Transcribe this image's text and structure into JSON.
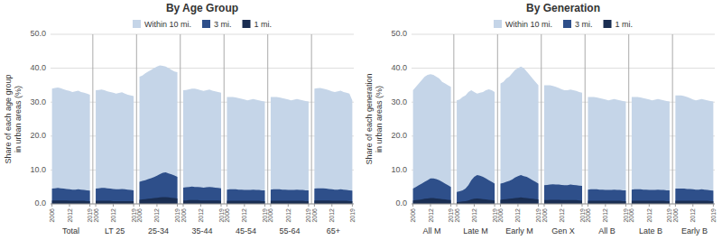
{
  "chart_data": [
    {
      "type": "area",
      "title": "By Age Group",
      "y_label": "Share of each age group\nin urban areas (%)",
      "stacked": false,
      "grid": true,
      "legend": "top",
      "groups": [
        "Total",
        "LT 25",
        "25-34",
        "35-44",
        "45-54",
        "55-64",
        "65+"
      ],
      "categories": [
        "2006",
        null,
        null,
        null,
        null,
        null,
        "2012",
        null,
        null,
        null,
        null,
        null,
        null,
        "2019",
        null,
        "2006",
        null,
        null,
        null,
        null,
        null,
        "2012",
        null,
        null,
        null,
        null,
        null,
        null,
        "2019",
        null,
        "2006",
        null,
        null,
        null,
        null,
        null,
        "2012",
        null,
        null,
        null,
        null,
        null,
        null,
        "2019",
        null,
        "2006",
        null,
        null,
        null,
        null,
        null,
        "2012",
        null,
        null,
        null,
        null,
        null,
        null,
        "2019",
        null,
        "2006",
        null,
        null,
        null,
        null,
        null,
        "2012",
        null,
        null,
        null,
        null,
        null,
        null,
        "2019",
        null,
        "2006",
        null,
        null,
        null,
        null,
        null,
        "2012",
        null,
        null,
        null,
        null,
        null,
        null,
        "2019",
        null,
        "2006",
        null,
        null,
        null,
        null,
        null,
        "2012",
        null,
        null,
        null,
        null,
        null,
        null,
        "2019"
      ],
      "ylim": [
        0,
        50
      ],
      "yticks": [
        {
          "value": 0,
          "label": "0.0"
        },
        {
          "value": 10,
          "label": "10.0"
        },
        {
          "value": 20,
          "label": "20.0"
        },
        {
          "value": 30,
          "label": "30.0"
        },
        {
          "value": 40,
          "label": "40.0"
        },
        {
          "value": 50,
          "label": "50.0"
        }
      ],
      "series": [
        {
          "name": "Within 10 mi.",
          "color": "#c5d5e8",
          "values": [
            34.0,
            34.2,
            34.3,
            34.1,
            33.8,
            33.5,
            33.3,
            33.0,
            33.2,
            33.4,
            33.0,
            32.8,
            32.5,
            32.2,
            null,
            33.5,
            33.6,
            33.7,
            33.5,
            33.2,
            33.0,
            32.8,
            32.5,
            32.7,
            32.9,
            32.5,
            32.2,
            32.0,
            31.8,
            null,
            37.5,
            37.8,
            38.5,
            39.0,
            39.5,
            40.0,
            40.5,
            40.8,
            40.7,
            40.5,
            40.0,
            39.5,
            39.0,
            38.8,
            null,
            33.5,
            33.6,
            33.8,
            34.0,
            34.0,
            33.8,
            33.5,
            33.3,
            33.5,
            33.7,
            33.4,
            33.2,
            33.0,
            32.8,
            null,
            31.5,
            31.5,
            31.5,
            31.4,
            31.2,
            31.0,
            30.8,
            30.5,
            30.7,
            30.9,
            30.7,
            30.5,
            30.3,
            30.2,
            null,
            31.5,
            31.5,
            31.5,
            31.4,
            31.2,
            31.0,
            30.8,
            30.5,
            30.7,
            30.9,
            30.7,
            30.5,
            30.3,
            30.2,
            null,
            34.0,
            34.1,
            34.2,
            34.0,
            33.8,
            33.5,
            33.2,
            33.0,
            33.2,
            33.4,
            33.0,
            32.8,
            32.5,
            30.5
          ]
        },
        {
          "name": "3 mi.",
          "color": "#2e4f8a",
          "values": [
            4.5,
            4.6,
            4.7,
            4.6,
            4.5,
            4.4,
            4.3,
            4.2,
            4.2,
            4.3,
            4.2,
            4.1,
            4.0,
            3.9,
            null,
            4.5,
            4.6,
            4.7,
            4.7,
            4.6,
            4.5,
            4.4,
            4.3,
            4.3,
            4.4,
            4.3,
            4.2,
            4.1,
            4.0,
            null,
            6.5,
            6.8,
            7.0,
            7.3,
            7.6,
            7.9,
            8.3,
            8.8,
            9.2,
            9.3,
            9.0,
            8.7,
            8.4,
            8.0,
            null,
            4.8,
            4.9,
            5.0,
            5.1,
            5.0,
            5.0,
            4.9,
            4.8,
            4.9,
            5.0,
            4.9,
            4.8,
            4.7,
            4.6,
            null,
            4.2,
            4.3,
            4.3,
            4.3,
            4.2,
            4.2,
            4.1,
            4.1,
            4.1,
            4.2,
            4.1,
            4.1,
            4.0,
            4.0,
            null,
            4.2,
            4.3,
            4.3,
            4.3,
            4.2,
            4.2,
            4.1,
            4.1,
            4.1,
            4.2,
            4.1,
            4.1,
            4.0,
            4.0,
            null,
            4.5,
            4.6,
            4.6,
            4.6,
            4.5,
            4.4,
            4.3,
            4.2,
            4.2,
            4.3,
            4.2,
            4.1,
            4.0,
            3.9
          ]
        },
        {
          "name": "1 mi.",
          "color": "#1a2e52",
          "values": [
            1.0,
            1.0,
            1.0,
            1.0,
            1.0,
            1.0,
            0.9,
            0.9,
            0.9,
            0.9,
            0.9,
            0.9,
            0.8,
            0.8,
            null,
            0.9,
            0.9,
            0.9,
            0.9,
            0.9,
            0.9,
            0.8,
            0.8,
            0.8,
            0.8,
            0.8,
            0.8,
            0.8,
            0.8,
            null,
            1.2,
            1.3,
            1.4,
            1.5,
            1.6,
            1.7,
            1.8,
            1.9,
            2.0,
            2.0,
            1.9,
            1.8,
            1.7,
            1.6,
            null,
            1.0,
            1.0,
            1.1,
            1.1,
            1.1,
            1.1,
            1.0,
            1.0,
            1.0,
            1.0,
            1.0,
            1.0,
            1.0,
            0.9,
            null,
            0.9,
            0.9,
            0.9,
            0.9,
            0.9,
            0.9,
            0.9,
            0.9,
            0.9,
            0.9,
            0.9,
            0.9,
            0.8,
            0.8,
            null,
            0.9,
            0.9,
            0.9,
            0.9,
            0.9,
            0.9,
            0.9,
            0.9,
            0.9,
            0.9,
            0.9,
            0.9,
            0.8,
            0.8,
            null,
            1.0,
            1.0,
            1.0,
            1.0,
            1.0,
            1.0,
            0.9,
            0.9,
            0.9,
            0.9,
            0.9,
            0.9,
            0.8,
            0.8
          ]
        }
      ]
    },
    {
      "type": "area",
      "title": "By Generation",
      "y_label": "Share of each generation\nin urban areas (%)",
      "stacked": false,
      "grid": true,
      "legend": "top",
      "groups": [
        "All M",
        "Late M",
        "Early M",
        "Gen X",
        "All B",
        "Late B",
        "Early B"
      ],
      "categories": [
        "2006",
        null,
        null,
        null,
        null,
        null,
        "2012",
        null,
        null,
        null,
        null,
        null,
        null,
        "2019",
        null,
        "2006",
        null,
        null,
        null,
        null,
        null,
        "2012",
        null,
        null,
        null,
        null,
        null,
        null,
        "2019",
        null,
        "2006",
        null,
        null,
        null,
        null,
        null,
        "2012",
        null,
        null,
        null,
        null,
        null,
        null,
        "2019",
        null,
        "2006",
        null,
        null,
        null,
        null,
        null,
        "2012",
        null,
        null,
        null,
        null,
        null,
        null,
        "2019",
        null,
        "2006",
        null,
        null,
        null,
        null,
        null,
        "2012",
        null,
        null,
        null,
        null,
        null,
        null,
        "2019",
        null,
        "2006",
        null,
        null,
        null,
        null,
        null,
        "2012",
        null,
        null,
        null,
        null,
        null,
        null,
        "2019",
        null,
        "2006",
        null,
        null,
        null,
        null,
        null,
        "2012",
        null,
        null,
        null,
        null,
        null,
        null,
        "2019"
      ],
      "ylim": [
        0,
        50
      ],
      "yticks": [
        {
          "value": 0,
          "label": "0.0"
        },
        {
          "value": 10,
          "label": "10.0"
        },
        {
          "value": 20,
          "label": "20.0"
        },
        {
          "value": 30,
          "label": "30.0"
        },
        {
          "value": 40,
          "label": "40.0"
        },
        {
          "value": 50,
          "label": "50.0"
        }
      ],
      "series": [
        {
          "name": "Within 10 mi.",
          "color": "#c5d5e8",
          "values": [
            33.5,
            34.5,
            35.5,
            36.5,
            37.5,
            38.0,
            38.2,
            38.0,
            37.5,
            37.0,
            36.0,
            35.5,
            35.0,
            34.5,
            null,
            30.5,
            30.8,
            31.5,
            32.0,
            33.0,
            33.5,
            33.0,
            32.5,
            32.8,
            33.0,
            33.5,
            33.8,
            33.5,
            33.0,
            null,
            35.5,
            36.0,
            37.0,
            37.5,
            38.5,
            39.5,
            40.0,
            40.5,
            40.0,
            39.0,
            38.0,
            37.0,
            36.0,
            35.0,
            null,
            35.0,
            35.0,
            35.0,
            34.8,
            34.5,
            34.2,
            33.8,
            33.5,
            33.5,
            33.7,
            33.5,
            33.3,
            33.0,
            32.8,
            null,
            31.5,
            31.5,
            31.5,
            31.4,
            31.2,
            31.0,
            30.8,
            30.5,
            30.7,
            30.9,
            30.7,
            30.5,
            30.3,
            30.2,
            null,
            31.5,
            31.5,
            31.5,
            31.4,
            31.2,
            31.0,
            30.8,
            30.5,
            30.7,
            30.9,
            30.7,
            30.5,
            30.3,
            30.2,
            null,
            32.0,
            32.0,
            32.0,
            31.8,
            31.5,
            31.2,
            30.8,
            30.5,
            30.7,
            30.9,
            30.7,
            30.5,
            30.3,
            30.2
          ]
        },
        {
          "name": "3 mi.",
          "color": "#2e4f8a",
          "values": [
            4.5,
            5.0,
            5.5,
            6.0,
            6.5,
            7.0,
            7.5,
            7.5,
            7.3,
            7.0,
            6.5,
            6.0,
            5.5,
            5.0,
            null,
            3.5,
            3.7,
            4.0,
            4.5,
            5.5,
            7.0,
            8.0,
            8.5,
            8.3,
            8.0,
            7.5,
            7.0,
            6.5,
            6.0,
            null,
            6.0,
            6.2,
            6.5,
            6.8,
            7.2,
            7.8,
            8.2,
            8.5,
            8.2,
            8.0,
            7.5,
            7.0,
            6.5,
            6.0,
            null,
            5.5,
            5.6,
            5.7,
            5.8,
            5.7,
            5.7,
            5.6,
            5.5,
            5.5,
            5.7,
            5.6,
            5.5,
            5.4,
            5.3,
            null,
            4.2,
            4.3,
            4.3,
            4.3,
            4.2,
            4.2,
            4.1,
            4.1,
            4.1,
            4.2,
            4.1,
            4.1,
            4.0,
            4.0,
            null,
            4.2,
            4.3,
            4.3,
            4.3,
            4.2,
            4.2,
            4.1,
            4.1,
            4.1,
            4.2,
            4.1,
            4.1,
            4.0,
            4.0,
            null,
            4.5,
            4.5,
            4.5,
            4.5,
            4.4,
            4.4,
            4.3,
            4.2,
            4.2,
            4.3,
            4.2,
            4.1,
            4.0,
            3.9
          ]
        },
        {
          "name": "1 mi.",
          "color": "#1a2e52",
          "values": [
            1.0,
            1.1,
            1.2,
            1.3,
            1.5,
            1.6,
            1.7,
            1.7,
            1.6,
            1.5,
            1.4,
            1.3,
            1.2,
            1.1,
            null,
            0.5,
            0.6,
            0.7,
            0.8,
            1.0,
            1.3,
            1.5,
            1.6,
            1.5,
            1.4,
            1.3,
            1.2,
            1.1,
            1.0,
            null,
            1.2,
            1.3,
            1.4,
            1.5,
            1.6,
            1.7,
            1.8,
            1.9,
            1.8,
            1.7,
            1.6,
            1.5,
            1.4,
            1.3,
            null,
            1.1,
            1.1,
            1.2,
            1.2,
            1.2,
            1.2,
            1.1,
            1.1,
            1.1,
            1.1,
            1.1,
            1.1,
            1.0,
            1.0,
            null,
            0.9,
            0.9,
            0.9,
            0.9,
            0.9,
            0.9,
            0.9,
            0.9,
            0.9,
            0.9,
            0.9,
            0.9,
            0.8,
            0.8,
            null,
            0.9,
            0.9,
            0.9,
            0.9,
            0.9,
            0.9,
            0.9,
            0.9,
            0.9,
            0.9,
            0.9,
            0.9,
            0.8,
            0.8,
            null,
            0.9,
            0.9,
            0.9,
            0.9,
            0.9,
            0.9,
            0.9,
            0.9,
            0.9,
            0.9,
            0.9,
            0.9,
            0.8,
            0.8
          ]
        }
      ]
    }
  ]
}
